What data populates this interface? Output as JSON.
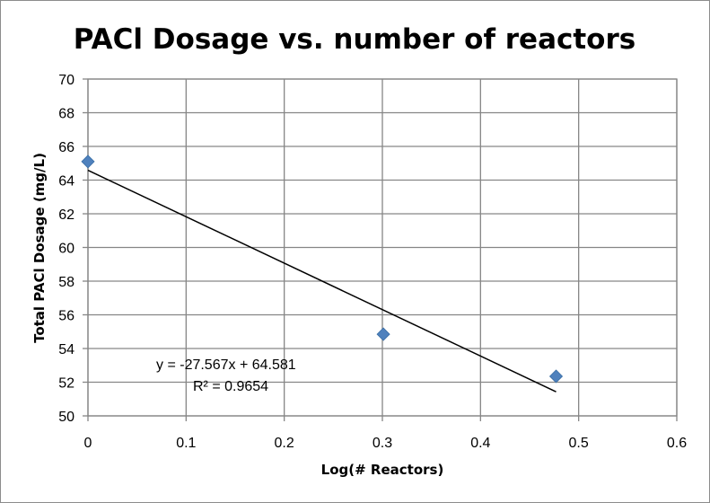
{
  "chart_data": {
    "type": "scatter",
    "title": "PACl Dosage vs. number of reactors",
    "xlabel": "Log(# Reactors)",
    "ylabel": "Total PACl Dosage (mg/L)",
    "xlim": [
      0,
      0.6
    ],
    "ylim": [
      50,
      70
    ],
    "x_ticks": [
      "0",
      "0.1",
      "0.2",
      "0.3",
      "0.4",
      "0.5",
      "0.6"
    ],
    "y_ticks": [
      "50",
      "52",
      "54",
      "56",
      "58",
      "60",
      "62",
      "64",
      "66",
      "68",
      "70"
    ],
    "grid": true,
    "legend": "none",
    "marker_color": "#4F81BD",
    "series": [
      {
        "points": [
          {
            "x": 0,
            "y": 65.1
          },
          {
            "x": 0.301,
            "y": 54.85
          },
          {
            "x": 0.477,
            "y": 52.35
          }
        ]
      }
    ],
    "trendline": {
      "slope": -27.567,
      "intercept": 64.581,
      "x_range": [
        0,
        0.477
      ],
      "color": "#000000"
    },
    "annotations": {
      "equation": "y = -27.567x + 64.581",
      "r_squared": "R² = 0.9654"
    }
  }
}
